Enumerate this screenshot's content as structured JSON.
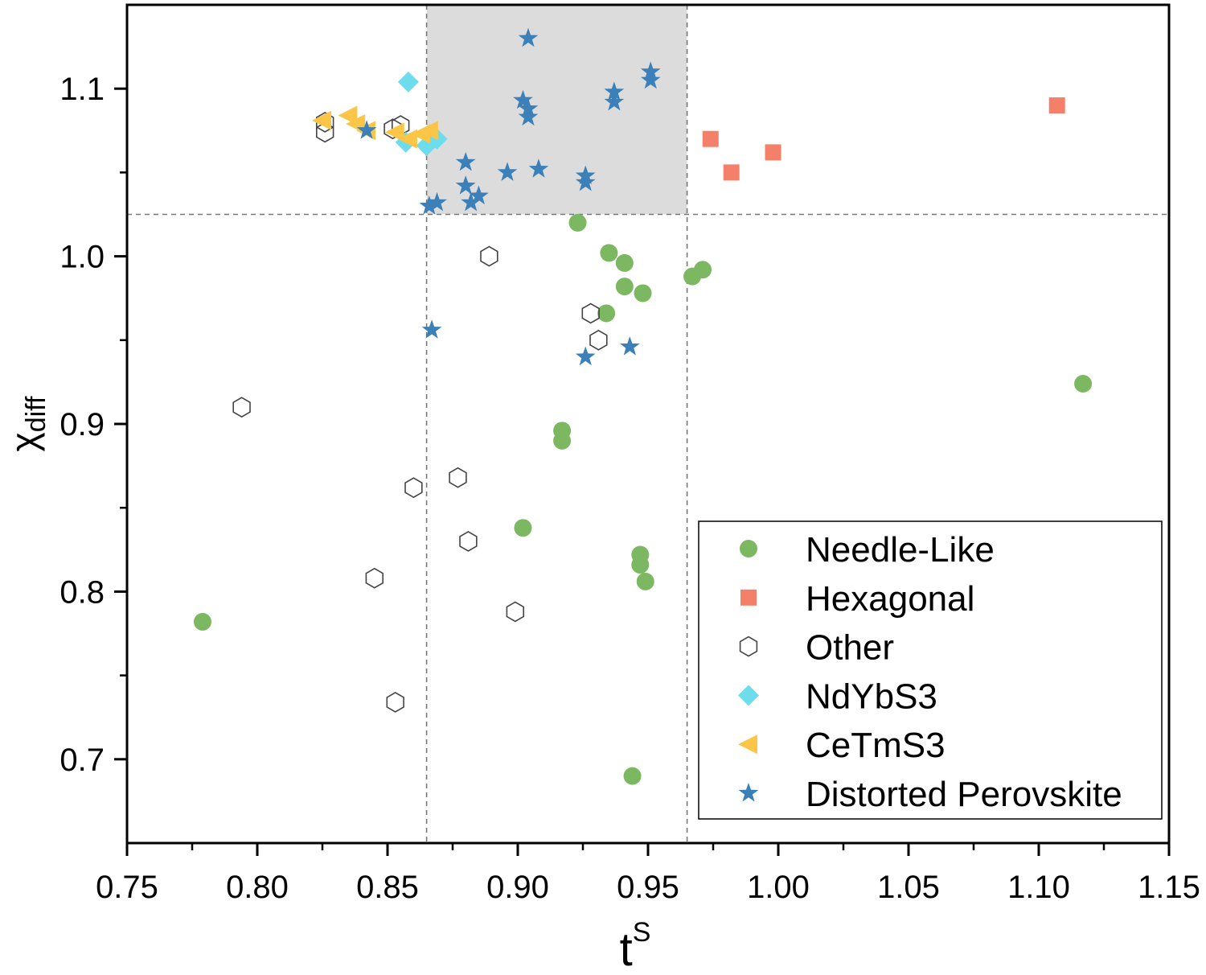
{
  "chart_data": {
    "type": "scatter",
    "xlabel": {
      "base": "t",
      "sup": "S"
    },
    "ylabel": {
      "base": "χ",
      "sub": "diff"
    },
    "xlim": [
      0.75,
      1.15
    ],
    "ylim": [
      0.65,
      1.15
    ],
    "x_ticks": [
      "0.75",
      "0.80",
      "0.85",
      "0.90",
      "0.95",
      "1.00",
      "1.05",
      "1.10",
      "1.15"
    ],
    "y_ticks": [
      "0.7",
      "0.8",
      "0.9",
      "1.0",
      "1.1"
    ],
    "grid": false,
    "legend_position": "bottom-right",
    "reference_lines": {
      "x": [
        0.865,
        0.965
      ],
      "y": [
        1.025
      ]
    },
    "shaded_region": {
      "x": [
        0.865,
        0.965
      ],
      "y": [
        1.025,
        1.15
      ],
      "color": "#dcdcdc"
    },
    "series": [
      {
        "name": "Needle-Like",
        "marker": "circle",
        "color": "#7cb862",
        "points": [
          [
            0.779,
            0.782
          ],
          [
            0.923,
            1.02
          ],
          [
            0.935,
            1.002
          ],
          [
            0.941,
            0.996
          ],
          [
            0.941,
            0.982
          ],
          [
            0.948,
            0.978
          ],
          [
            0.934,
            0.966
          ],
          [
            0.967,
            0.988
          ],
          [
            0.971,
            0.992
          ],
          [
            0.917,
            0.896
          ],
          [
            0.917,
            0.89
          ],
          [
            0.902,
            0.838
          ],
          [
            0.947,
            0.822
          ],
          [
            0.947,
            0.816
          ],
          [
            0.949,
            0.806
          ],
          [
            0.944,
            0.69
          ],
          [
            1.117,
            0.924
          ]
        ]
      },
      {
        "name": "Hexagonal",
        "marker": "square",
        "color": "#f4806a",
        "points": [
          [
            0.974,
            1.07
          ],
          [
            0.982,
            1.05
          ],
          [
            0.998,
            1.062
          ],
          [
            1.107,
            1.09
          ]
        ]
      },
      {
        "name": "Other",
        "marker": "hexagon-open",
        "color": "#444444",
        "points": [
          [
            0.826,
            1.08
          ],
          [
            0.826,
            1.074
          ],
          [
            0.852,
            1.076
          ],
          [
            0.855,
            1.078
          ],
          [
            0.889,
            1.0
          ],
          [
            0.928,
            0.966
          ],
          [
            0.931,
            0.95
          ],
          [
            0.794,
            0.91
          ],
          [
            0.877,
            0.868
          ],
          [
            0.86,
            0.862
          ],
          [
            0.881,
            0.83
          ],
          [
            0.845,
            0.808
          ],
          [
            0.899,
            0.788
          ],
          [
            0.853,
            0.734
          ]
        ]
      },
      {
        "name": "NdYbS3",
        "marker": "diamond",
        "color": "#6ddcec",
        "points": [
          [
            0.858,
            1.104
          ],
          [
            0.857,
            1.068
          ],
          [
            0.865,
            1.066
          ],
          [
            0.869,
            1.07
          ]
        ]
      },
      {
        "name": "CeTmS3",
        "marker": "triangle-left",
        "color": "#fbc548",
        "points": [
          [
            0.825,
            1.081
          ],
          [
            0.835,
            1.084
          ],
          [
            0.838,
            1.079
          ],
          [
            0.842,
            1.075
          ],
          [
            0.853,
            1.074
          ],
          [
            0.858,
            1.07
          ],
          [
            0.863,
            1.073
          ],
          [
            0.866,
            1.075
          ]
        ]
      },
      {
        "name": "Distorted Perovskite",
        "marker": "star",
        "color": "#3b80b8",
        "points": [
          [
            0.904,
            1.13
          ],
          [
            0.951,
            1.11
          ],
          [
            0.951,
            1.105
          ],
          [
            0.937,
            1.098
          ],
          [
            0.937,
            1.092
          ],
          [
            0.902,
            1.093
          ],
          [
            0.904,
            1.088
          ],
          [
            0.904,
            1.083
          ],
          [
            0.842,
            1.075
          ],
          [
            0.88,
            1.056
          ],
          [
            0.896,
            1.05
          ],
          [
            0.908,
            1.052
          ],
          [
            0.926,
            1.048
          ],
          [
            0.926,
            1.044
          ],
          [
            0.88,
            1.042
          ],
          [
            0.885,
            1.036
          ],
          [
            0.882,
            1.032
          ],
          [
            0.866,
            1.03
          ],
          [
            0.869,
            1.032
          ],
          [
            0.867,
            0.956
          ],
          [
            0.943,
            0.946
          ],
          [
            0.926,
            0.94
          ]
        ]
      }
    ]
  }
}
